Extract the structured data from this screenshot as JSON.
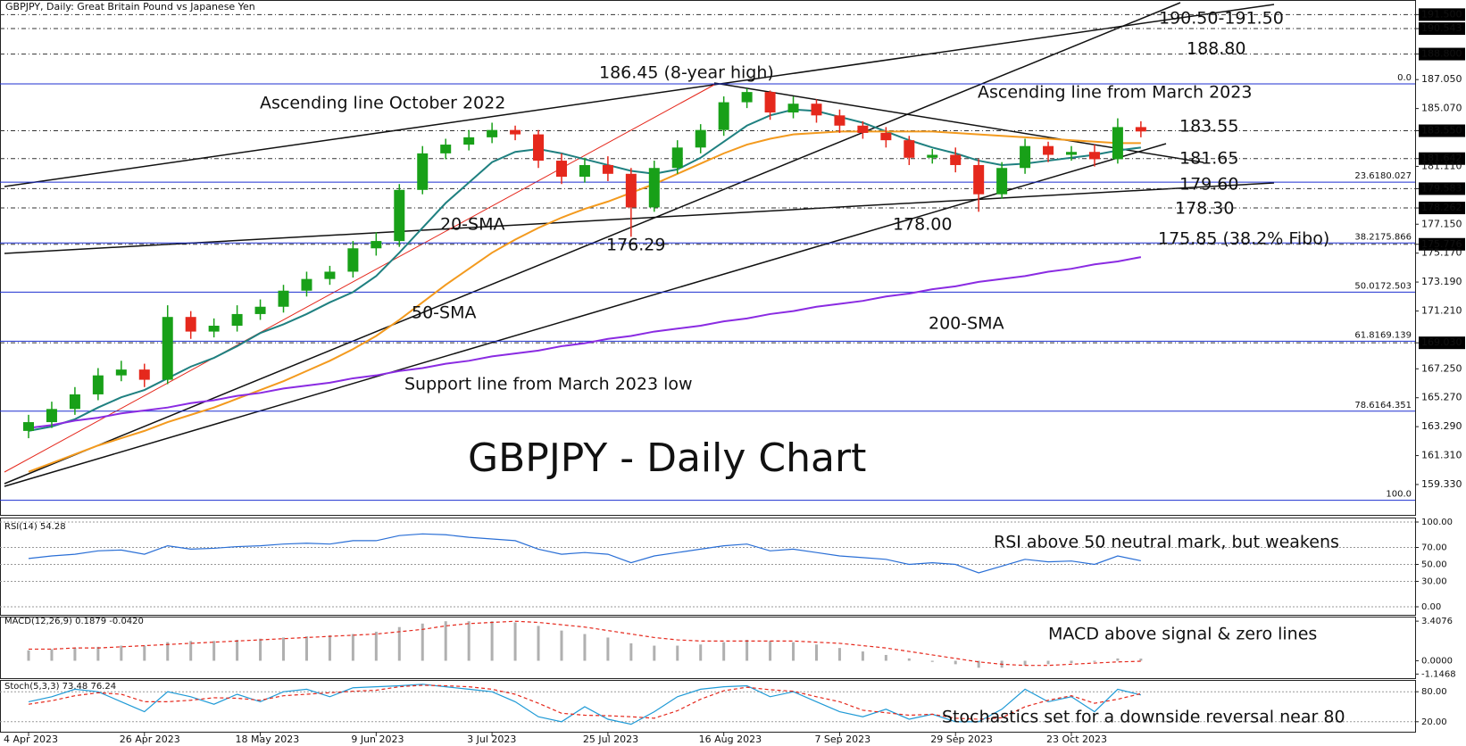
{
  "header": "GBPJPY, Daily:  Great Britain Pound vs Japanese Yen",
  "chart_data": [
    {
      "type": "candlestick",
      "title": "GBPJPY - Daily Chart",
      "categories": [
        "4 Apr 2023",
        null,
        null,
        null,
        null,
        "26 Apr 2023",
        null,
        null,
        null,
        null,
        "18 May 2023",
        null,
        null,
        null,
        null,
        "9 Jun 2023",
        null,
        null,
        null,
        null,
        "3 Jul 2023",
        null,
        null,
        null,
        null,
        "25 Jul 2023",
        null,
        null,
        null,
        null,
        "16 Aug 2023",
        null,
        null,
        null,
        null,
        "7 Sep 2023",
        null,
        null,
        null,
        null,
        "29 Sep 2023",
        null,
        null,
        null,
        null,
        "23 Oct 2023",
        null,
        null,
        null
      ],
      "open": [
        163.0,
        163.6,
        164.5,
        165.5,
        166.8,
        167.2,
        166.5,
        170.8,
        169.8,
        170.2,
        171.0,
        171.5,
        172.6,
        173.4,
        173.9,
        175.5,
        176.0,
        179.5,
        182.0,
        182.6,
        183.1,
        183.6,
        183.3,
        181.5,
        180.4,
        181.2,
        180.6,
        178.3,
        181.0,
        182.4,
        183.6,
        185.5,
        186.2,
        184.8,
        185.4,
        184.6,
        183.9,
        183.4,
        182.9,
        181.7,
        181.9,
        181.2,
        179.2,
        181.0,
        182.5,
        181.9,
        182.1,
        181.6,
        183.8
      ],
      "high": [
        164.1,
        165.0,
        166.0,
        167.3,
        167.8,
        167.6,
        171.6,
        171.2,
        170.7,
        171.6,
        172.0,
        173.0,
        173.9,
        174.3,
        176.0,
        176.6,
        179.9,
        182.5,
        183.0,
        183.6,
        184.1,
        183.9,
        183.6,
        182.0,
        181.7,
        181.8,
        181.0,
        181.5,
        182.9,
        184.0,
        185.9,
        186.45,
        186.3,
        185.9,
        185.7,
        185.0,
        184.2,
        183.8,
        183.2,
        182.3,
        182.4,
        181.6,
        181.4,
        183.0,
        182.8,
        182.5,
        182.6,
        184.4,
        184.2
      ],
      "low": [
        162.5,
        163.2,
        164.1,
        165.1,
        166.4,
        166.0,
        166.2,
        169.3,
        169.4,
        169.8,
        170.6,
        171.1,
        172.2,
        173.0,
        173.5,
        175.0,
        175.6,
        179.2,
        181.6,
        182.2,
        182.7,
        182.9,
        181.0,
        179.9,
        180.0,
        180.1,
        176.29,
        178.0,
        180.6,
        182.0,
        183.2,
        185.1,
        184.3,
        184.4,
        184.1,
        183.4,
        183.0,
        182.4,
        181.2,
        181.3,
        180.7,
        178.0,
        178.9,
        180.6,
        181.4,
        181.5,
        181.1,
        181.3,
        183.1
      ],
      "close": [
        163.6,
        164.5,
        165.5,
        166.8,
        167.2,
        166.5,
        170.8,
        169.8,
        170.2,
        171.0,
        171.5,
        172.6,
        173.4,
        173.9,
        175.5,
        176.0,
        179.5,
        182.0,
        182.6,
        183.1,
        183.6,
        183.3,
        181.5,
        180.4,
        181.2,
        180.6,
        178.3,
        181.0,
        182.4,
        183.6,
        185.5,
        186.2,
        184.8,
        185.4,
        184.6,
        183.9,
        183.4,
        182.9,
        181.7,
        181.9,
        181.2,
        179.2,
        181.0,
        182.5,
        181.9,
        182.1,
        181.6,
        183.8,
        183.5
      ],
      "up_color": "#18a018",
      "down_color": "#e5281c",
      "series": [
        {
          "name": "20-SMA",
          "color": "#1f8080",
          "values": [
            163.0,
            163.3,
            163.8,
            164.6,
            165.3,
            165.8,
            166.6,
            167.4,
            168.0,
            168.8,
            169.7,
            170.3,
            171.0,
            171.8,
            172.5,
            173.6,
            175.2,
            176.9,
            178.6,
            180.0,
            181.4,
            182.1,
            182.3,
            182.0,
            181.6,
            181.2,
            180.8,
            180.6,
            180.9,
            181.7,
            182.8,
            183.9,
            184.6,
            185.0,
            184.9,
            184.5,
            184.1,
            183.5,
            182.9,
            182.4,
            182.0,
            181.5,
            181.2,
            181.3,
            181.5,
            181.7,
            181.9,
            182.2,
            182.4
          ]
        },
        {
          "name": "50-SMA",
          "color": "#f39a1e",
          "values": [
            160.2,
            160.8,
            161.4,
            162.0,
            162.5,
            163.0,
            163.6,
            164.1,
            164.6,
            165.2,
            165.8,
            166.4,
            167.1,
            167.8,
            168.6,
            169.5,
            170.6,
            171.8,
            173.0,
            174.1,
            175.2,
            176.1,
            176.9,
            177.6,
            178.2,
            178.7,
            179.3,
            179.9,
            180.6,
            181.3,
            182.0,
            182.6,
            183.0,
            183.3,
            183.4,
            183.5,
            183.5,
            183.5,
            183.5,
            183.5,
            183.4,
            183.3,
            183.2,
            183.1,
            183.0,
            182.9,
            182.8,
            182.7,
            182.7
          ]
        },
        {
          "name": "200-SMA",
          "color": "#8a2be2",
          "values": [
            163.2,
            163.4,
            163.7,
            163.9,
            164.2,
            164.4,
            164.6,
            164.9,
            165.1,
            165.4,
            165.6,
            165.9,
            166.1,
            166.3,
            166.6,
            166.8,
            167.1,
            167.3,
            167.6,
            167.8,
            168.1,
            168.3,
            168.5,
            168.8,
            169.0,
            169.3,
            169.5,
            169.8,
            170.0,
            170.2,
            170.5,
            170.7,
            171.0,
            171.2,
            171.5,
            171.7,
            171.9,
            172.2,
            172.4,
            172.7,
            172.9,
            173.2,
            173.4,
            173.6,
            173.9,
            174.1,
            174.4,
            174.6,
            174.9
          ]
        }
      ],
      "ylim": [
        157.25,
        192.5
      ],
      "yticks": [
        {
          "value": 191.5,
          "label": "191.500",
          "level": true
        },
        {
          "value": 190.543,
          "label": "190.543",
          "level": true
        },
        {
          "value": 188.8,
          "label": "188.800",
          "level": true
        },
        {
          "value": 187.05,
          "label": "187.050"
        },
        {
          "value": 185.07,
          "label": "185.070"
        },
        {
          "value": 183.55,
          "label": "183.550",
          "level": true
        },
        {
          "value": 181.642,
          "label": "181.642",
          "level": true
        },
        {
          "value": 181.11,
          "label": "181.110"
        },
        {
          "value": 179.583,
          "label": "179.583",
          "level": true
        },
        {
          "value": 178.262,
          "label": "178.262",
          "level": true
        },
        {
          "value": 177.15,
          "label": "177.150"
        },
        {
          "value": 175.776,
          "label": "175.776",
          "level": true
        },
        {
          "value": 175.17,
          "label": "175.170"
        },
        {
          "value": 173.19,
          "label": "173.190"
        },
        {
          "value": 171.21,
          "label": "171.210"
        },
        {
          "value": 169.03,
          "label": "169.030",
          "level": true
        },
        {
          "value": 167.25,
          "label": "167.250"
        },
        {
          "value": 165.27,
          "label": "165.270"
        },
        {
          "value": 163.29,
          "label": "163.290"
        },
        {
          "value": 161.31,
          "label": "161.310"
        },
        {
          "value": 159.33,
          "label": "159.330"
        }
      ],
      "fib_color": "#1c2fd0",
      "fib_levels": [
        {
          "value": 186.757,
          "label": "0.0"
        },
        {
          "value": 180.027,
          "label": "23.6180.027"
        },
        {
          "value": 175.866,
          "label": "38.2175.866"
        },
        {
          "value": 172.503,
          "label": "50.0172.503"
        },
        {
          "value": 169.139,
          "label": "61.8169.139"
        },
        {
          "value": 164.351,
          "label": "78.6164.351"
        },
        {
          "value": 158.25,
          "label": "100.0"
        }
      ],
      "annotations": [
        {
          "text": "186.45 (8-year high)",
          "color": "#111111"
        },
        {
          "text": "Ascending line October 2022",
          "color": "#111111"
        },
        {
          "text": "Ascending line from March 2023",
          "color": "#111111"
        },
        {
          "text": "190.50-191.50",
          "color": "#e5281c"
        },
        {
          "text": "188.80",
          "color": "#e5281c"
        },
        {
          "text": "183.55",
          "color": "#e5281c"
        },
        {
          "text": "181.65",
          "color": "#1a8a1a"
        },
        {
          "text": "179.60",
          "color": "#1a8a1a"
        },
        {
          "text": "178.30",
          "color": "#1a8a1a"
        },
        {
          "text": "175.85 (38.2% Fibo)",
          "color": "#1a8a1a"
        },
        {
          "text": "20-SMA",
          "color": "#1f8080"
        },
        {
          "text": "176.29",
          "color": "#111111"
        },
        {
          "text": "178.00",
          "color": "#111111"
        },
        {
          "text": "50-SMA",
          "color": "#f39a1e"
        },
        {
          "text": "200-SMA",
          "color": "#8a2be2"
        },
        {
          "text": "Support line from March 2023 low",
          "color": "#111111"
        }
      ]
    },
    {
      "type": "line",
      "title": "RSI(14) 54.28",
      "color": "#2a6fd6",
      "values": [
        57,
        60,
        62,
        66,
        67,
        62,
        72,
        68,
        69,
        71,
        72,
        74,
        75,
        74,
        78,
        78,
        84,
        86,
        85,
        82,
        80,
        78,
        68,
        62,
        64,
        62,
        52,
        60,
        64,
        68,
        72,
        74,
        66,
        68,
        64,
        60,
        58,
        56,
        50,
        52,
        50,
        40,
        48,
        56,
        53,
        54,
        50,
        60,
        54.28
      ],
      "ylim": [
        0,
        100
      ],
      "yticks": [
        {
          "value": 100,
          "label": "100.00"
        },
        {
          "value": 70,
          "label": "70.00"
        },
        {
          "value": 50,
          "label": "50.00"
        },
        {
          "value": 30,
          "label": "30.00"
        },
        {
          "value": 0,
          "label": "0.00"
        }
      ],
      "grid": true,
      "annotation": {
        "text": "RSI above 50 neutral mark, but weakens",
        "color": "#111111"
      }
    },
    {
      "type": "bar",
      "title": "MACD(12,26,9) 0.1879 -0.0420",
      "color": "#b0b0b0",
      "values": [
        0.9,
        1.0,
        1.1,
        1.2,
        1.3,
        1.3,
        1.6,
        1.7,
        1.7,
        1.8,
        1.9,
        2.0,
        2.1,
        2.2,
        2.3,
        2.5,
        2.9,
        3.2,
        3.4,
        3.4,
        3.4,
        3.3,
        3.0,
        2.6,
        2.3,
        2.0,
        1.5,
        1.3,
        1.3,
        1.4,
        1.6,
        1.8,
        1.7,
        1.6,
        1.4,
        1.1,
        0.8,
        0.5,
        0.2,
        -0.1,
        -0.3,
        -0.6,
        -0.6,
        -0.4,
        -0.3,
        -0.2,
        -0.1,
        0.2,
        0.1879
      ],
      "signal": {
        "color": "#e5281c",
        "values": [
          1.0,
          1.0,
          1.1,
          1.1,
          1.2,
          1.3,
          1.4,
          1.5,
          1.6,
          1.7,
          1.8,
          1.9,
          2.0,
          2.1,
          2.2,
          2.3,
          2.5,
          2.7,
          3.0,
          3.2,
          3.3,
          3.4,
          3.3,
          3.1,
          2.9,
          2.6,
          2.3,
          2.0,
          1.8,
          1.7,
          1.7,
          1.7,
          1.7,
          1.7,
          1.6,
          1.5,
          1.3,
          1.1,
          0.8,
          0.5,
          0.2,
          -0.1,
          -0.3,
          -0.4,
          -0.4,
          -0.3,
          -0.2,
          -0.1,
          -0.042
        ]
      },
      "ylim": [
        -1.5,
        3.8
      ],
      "yticks": [
        3.4076,
        {
          "value": 0,
          "label": "0.0000"
        },
        -1.1468
      ],
      "annotation": {
        "text": "MACD above signal & zero lines",
        "color": "#1a8a1a"
      }
    },
    {
      "type": "line",
      "title": "Stoch(5,3,3) 73.48 76.24",
      "series": [
        {
          "color": "#1f9ad6",
          "values": [
            60,
            70,
            85,
            80,
            60,
            40,
            80,
            70,
            55,
            75,
            60,
            80,
            85,
            70,
            88,
            90,
            92,
            95,
            90,
            85,
            80,
            60,
            30,
            20,
            50,
            25,
            15,
            40,
            70,
            85,
            90,
            92,
            70,
            80,
            60,
            40,
            30,
            45,
            25,
            35,
            20,
            20,
            45,
            85,
            60,
            70,
            40,
            85,
            73.48
          ]
        },
        {
          "color": "#e5281c",
          "dashed": true,
          "values": [
            55,
            62,
            72,
            78,
            75,
            60,
            60,
            63,
            68,
            67,
            63,
            72,
            75,
            78,
            81,
            83,
            90,
            93,
            92,
            90,
            85,
            75,
            57,
            37,
            33,
            32,
            30,
            27,
            42,
            65,
            82,
            89,
            84,
            81,
            70,
            60,
            43,
            38,
            33,
            35,
            27,
            25,
            28,
            50,
            63,
            72,
            57,
            65,
            76.24
          ]
        }
      ],
      "ylim": [
        0,
        100
      ],
      "yticks": [
        {
          "value": 80,
          "label": "80.00"
        },
        {
          "value": 20,
          "label": "20.00"
        }
      ],
      "grid": true,
      "annotation": {
        "text": "Stochastics set for a downside reversal near 80",
        "color": "#111111"
      }
    }
  ]
}
